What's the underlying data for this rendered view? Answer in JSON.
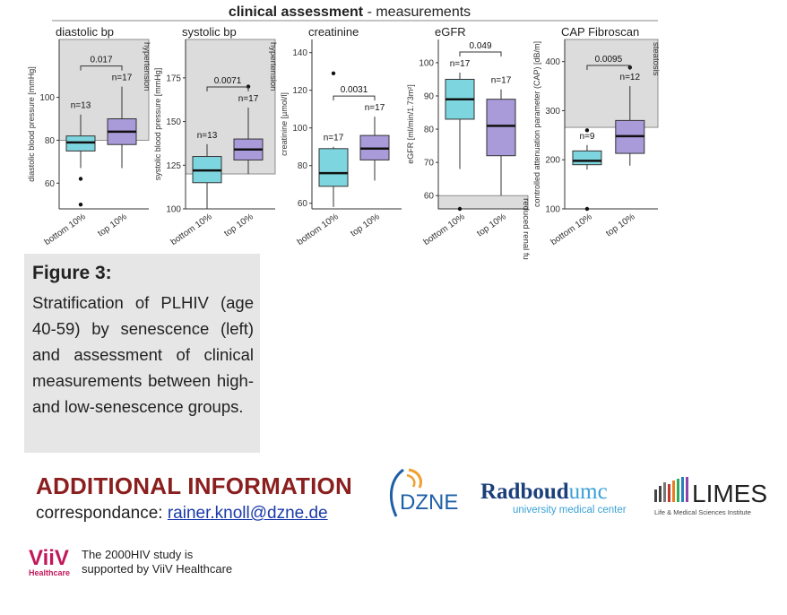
{
  "main_title": {
    "bold": "clinical assessment",
    "rest": " - measurements"
  },
  "colors": {
    "bottom": "#7dd6df",
    "top": "#a99ad9",
    "shade": "#dcdcdc"
  },
  "chart_data": [
    {
      "type": "box",
      "title": "diastolic bp",
      "ylabel": "diastolic blood pressure [mmHg]",
      "ylim": [
        48,
        127
      ],
      "yticks": [
        60,
        80,
        100
      ],
      "categories": [
        "bottom 10%",
        "top 10%"
      ],
      "boxes": [
        {
          "n": "n=13",
          "whisker_low": 67,
          "q1": 75,
          "median": 79,
          "q3": 82,
          "whisker_high": 92,
          "outliers": [
            62,
            50
          ]
        },
        {
          "n": "n=17",
          "whisker_low": 67,
          "q1": 78,
          "median": 84,
          "q3": 90,
          "whisker_high": 105,
          "outliers": []
        }
      ],
      "pvalue": "0.017",
      "shade": {
        "from": 80,
        "to": 127,
        "label": "hypertension"
      }
    },
    {
      "type": "box",
      "title": "systolic bp",
      "ylabel": "systolic blood pressure [mmHg]",
      "ylim": [
        100,
        197
      ],
      "yticks": [
        100,
        125,
        150,
        175
      ],
      "categories": [
        "bottom 10%",
        "top 10%"
      ],
      "boxes": [
        {
          "n": "n=13",
          "whisker_low": 100,
          "q1": 115,
          "median": 122,
          "q3": 130,
          "whisker_high": 137,
          "outliers": []
        },
        {
          "n": "n=17",
          "whisker_low": 120,
          "q1": 128,
          "median": 134,
          "q3": 140,
          "whisker_high": 158,
          "outliers": [
            170
          ]
        }
      ],
      "pvalue": "0.0071",
      "shade": {
        "from": 120,
        "to": 197,
        "label": "hypertension"
      }
    },
    {
      "type": "box",
      "title": "creatinine",
      "ylabel": "creatinine [µmol/l]",
      "ylim": [
        57,
        147
      ],
      "yticks": [
        60,
        80,
        100,
        120,
        140
      ],
      "categories": [
        "bottom 10%",
        "top 10%"
      ],
      "boxes": [
        {
          "n": "n=17",
          "whisker_low": 58,
          "q1": 69,
          "median": 76,
          "q3": 89,
          "whisker_high": 90,
          "outliers": [
            129
          ]
        },
        {
          "n": "n=17",
          "whisker_low": 72,
          "q1": 83,
          "median": 89,
          "q3": 96,
          "whisker_high": 106,
          "outliers": []
        }
      ],
      "pvalue": "0.0031",
      "shade": null
    },
    {
      "type": "box",
      "title": "eGFR",
      "ylabel": "eGFR [ml/min/1.73m²]",
      "ylim": [
        56,
        107
      ],
      "yticks": [
        60,
        70,
        80,
        90,
        100
      ],
      "categories": [
        "bottom 10%",
        "top 10%"
      ],
      "boxes": [
        {
          "n": "n=17",
          "whisker_low": 68,
          "q1": 83,
          "median": 89,
          "q3": 95,
          "whisker_high": 97,
          "outliers": [
            56
          ]
        },
        {
          "n": "n=17",
          "whisker_low": 60,
          "q1": 72,
          "median": 81,
          "q3": 89,
          "whisker_high": 92,
          "outliers": []
        }
      ],
      "pvalue": "0.049",
      "shade": {
        "from": 56,
        "to": 60,
        "label": "reduced renal function"
      }
    },
    {
      "type": "box",
      "title": "CAP Fibroscan",
      "ylabel": "controlled attenuation parameter (CAP) [dB/m]",
      "ylim": [
        100,
        445
      ],
      "yticks": [
        100,
        200,
        300,
        400
      ],
      "categories": [
        "bottom 10%",
        "top 10%"
      ],
      "boxes": [
        {
          "n": "n=9",
          "whisker_low": 180,
          "q1": 190,
          "median": 198,
          "q3": 218,
          "whisker_high": 230,
          "outliers": [
            260,
            100
          ]
        },
        {
          "n": "n=12",
          "whisker_low": 188,
          "q1": 213,
          "median": 248,
          "q3": 280,
          "whisker_high": 350,
          "outliers": [
            388
          ]
        }
      ],
      "pvalue": "0.0095",
      "shade": {
        "from": 266,
        "to": 445,
        "label": "steatosis"
      }
    }
  ],
  "figure": {
    "title": "Figure 3:",
    "text": "Stratification of PLHIV (age 40-59) by senescence (left) and assessment of clinical measurements between high- and low-senescence groups."
  },
  "additional": {
    "title": "ADDITIONAL INFORMATION",
    "corr_label": "correspondance: ",
    "corr_email": "rainer.knoll@dzne.de"
  },
  "logos": {
    "dzne": "DZNE",
    "radboud_main": "Radboud",
    "radboud_umc": "umc",
    "radboud_sub": "university medical center",
    "limes": "LIMES",
    "limes_sub": "Life & Medical Sciences Institute",
    "viiv": "ViiV",
    "viiv_sub": "Healthcare"
  },
  "support_text": [
    "The 2000HIV study is",
    "supported by ViiV Healthcare"
  ]
}
